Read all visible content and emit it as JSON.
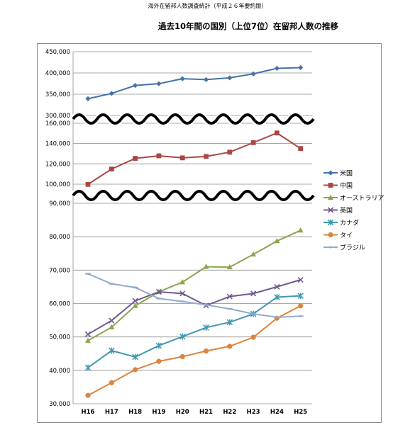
{
  "header": {
    "caption": "海外在留邦人数調査統計（平成２６年要約版）"
  },
  "chart_data": {
    "type": "line",
    "title": "過去10年間の国別（上位7位）在留邦人数の推移",
    "xlabel": "",
    "ylabel": "",
    "categories": [
      "H16",
      "H17",
      "H18",
      "H19",
      "H20",
      "H21",
      "H22",
      "H23",
      "H24",
      "H25"
    ],
    "panels": [
      {
        "name": "top",
        "ylim": [
          300000,
          450000
        ],
        "yticks": [
          "450,000",
          "400,000",
          "350,000",
          "300,000"
        ],
        "ytick_values": [
          450000,
          400000,
          350000,
          300000
        ]
      },
      {
        "name": "middle",
        "ylim": [
          93000,
          160000
        ],
        "yticks": [
          "160,000",
          "140,000",
          "120,000",
          "100,000"
        ],
        "ytick_values": [
          160000,
          140000,
          120000,
          100000
        ]
      },
      {
        "name": "bottom",
        "ylim": [
          30000,
          90000
        ],
        "yticks": [
          "90,000",
          "80,000",
          "70,000",
          "60,000",
          "50,000",
          "40,000",
          "30,000"
        ],
        "ytick_values": [
          90000,
          80000,
          70000,
          60000,
          50000,
          40000,
          30000
        ]
      }
    ],
    "grid": true,
    "legend_position": "right",
    "series": [
      {
        "name": "米国",
        "panel": "top",
        "color": "#4572A7",
        "marker": "diamond",
        "values": [
          339400,
          351800,
          370600,
          374700,
          386500,
          384400,
          388500,
          397900,
          410900,
          412600
        ]
      },
      {
        "name": "中国",
        "panel": "middle",
        "color": "#AA4643",
        "marker": "square",
        "values": [
          99800,
          114900,
          125400,
          127900,
          125900,
          127300,
          131500,
          140900,
          150400,
          135100
        ]
      },
      {
        "name": "オーストラリア",
        "panel": "bottom",
        "color": "#89A54E",
        "marker": "triangle",
        "values": [
          48900,
          52900,
          59300,
          63500,
          66400,
          71000,
          70900,
          74700,
          78700,
          81900
        ]
      },
      {
        "name": "英国",
        "panel": "bottom",
        "color": "#71588F",
        "marker": "x",
        "values": [
          50800,
          54900,
          60800,
          63500,
          63000,
          59400,
          62100,
          63000,
          65000,
          67100
        ]
      },
      {
        "name": "カナダ",
        "panel": "bottom",
        "color": "#4198AF",
        "marker": "star",
        "values": [
          40800,
          45900,
          44000,
          47400,
          50100,
          52800,
          54400,
          56900,
          61900,
          62300
        ]
      },
      {
        "name": "タイ",
        "panel": "bottom",
        "color": "#DB843D",
        "marker": "circle",
        "values": [
          32500,
          36300,
          40200,
          42700,
          44100,
          45800,
          47200,
          49900,
          55600,
          59300
        ]
      },
      {
        "name": "ブラジル",
        "panel": "bottom",
        "color": "#93A9CF",
        "marker": "plus",
        "values": [
          68900,
          65900,
          64800,
          61500,
          60600,
          59600,
          58400,
          56900,
          55900,
          56200
        ]
      }
    ]
  }
}
